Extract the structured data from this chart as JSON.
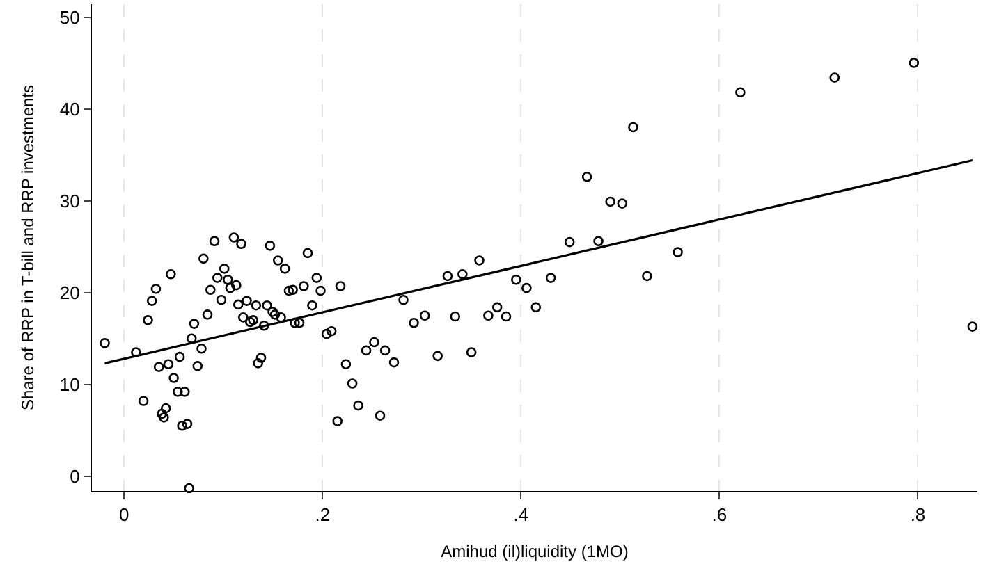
{
  "chart_data": {
    "type": "scatter",
    "xlabel": "Amihud (il)liquidity (1MO)",
    "ylabel": "Share of RRP in T-bill and RRP investments",
    "xlim": [
      -0.0325,
      0.86
    ],
    "ylim": [
      -1.6,
      51.4
    ],
    "xticks": [
      0,
      {
        "value": 0.2,
        "label": ".2"
      },
      {
        "value": 0.4,
        "label": ".4"
      },
      {
        "value": 0.6,
        "label": ".6"
      },
      {
        "value": 0.8,
        "label": ".8"
      }
    ],
    "yticks": [
      0,
      10,
      20,
      30,
      40,
      50
    ],
    "grid": "x",
    "legend": false,
    "series": [
      {
        "marker": "circle",
        "color": "#000000",
        "x": [
          -0.0195,
          0.012,
          0.0195,
          0.024,
          0.028,
          0.032,
          0.035,
          0.038,
          0.04,
          0.042,
          0.0446,
          0.047,
          0.05,
          0.054,
          0.056,
          0.0585,
          0.061,
          0.0636,
          0.0655,
          0.068,
          0.0706,
          0.074,
          0.078,
          0.08,
          0.084,
          0.087,
          0.091,
          0.094,
          0.098,
          0.101,
          0.1045,
          0.107,
          0.1106,
          0.113,
          0.115,
          0.118,
          0.12,
          0.1236,
          0.127,
          0.13,
          0.133,
          0.135,
          0.138,
          0.141,
          0.144,
          0.147,
          0.1496,
          0.152,
          0.155,
          0.158,
          0.162,
          0.166,
          0.17,
          0.172,
          0.1766,
          0.181,
          0.185,
          0.1895,
          0.194,
          0.198,
          0.204,
          0.209,
          0.215,
          0.218,
          0.2235,
          0.23,
          0.236,
          0.244,
          0.252,
          0.258,
          0.263,
          0.272,
          0.2815,
          0.292,
          0.303,
          0.316,
          0.326,
          0.3336,
          0.341,
          0.35,
          0.358,
          0.367,
          0.376,
          0.385,
          0.395,
          0.4056,
          0.415,
          0.43,
          0.449,
          0.4665,
          0.478,
          0.49,
          0.502,
          0.513,
          0.527,
          0.558,
          0.621,
          0.716,
          0.796,
          0.855
        ],
        "values": [
          14.5,
          13.5,
          8.2,
          17.0,
          19.1,
          20.4,
          11.9,
          6.8,
          6.4,
          7.4,
          12.2,
          22.0,
          10.7,
          9.2,
          13.0,
          5.5,
          9.2,
          5.7,
          -1.3,
          15.0,
          16.6,
          12.0,
          13.9,
          23.7,
          17.6,
          20.3,
          25.6,
          21.6,
          19.2,
          22.6,
          21.4,
          20.5,
          26.0,
          20.8,
          18.7,
          25.3,
          17.3,
          19.1,
          16.8,
          17.0,
          18.6,
          12.3,
          12.9,
          16.4,
          18.6,
          25.1,
          17.9,
          17.6,
          23.5,
          17.3,
          22.6,
          20.2,
          20.3,
          16.7,
          16.7,
          20.7,
          24.3,
          18.6,
          21.6,
          20.2,
          15.5,
          15.8,
          6.0,
          20.7,
          12.2,
          10.1,
          7.7,
          13.7,
          14.6,
          6.6,
          13.7,
          12.4,
          19.2,
          16.7,
          17.5,
          13.1,
          21.8,
          17.4,
          22.0,
          13.5,
          23.5,
          17.5,
          18.4,
          17.4,
          21.4,
          20.5,
          18.4,
          21.6,
          25.5,
          32.6,
          25.6,
          29.9,
          29.7,
          38.0,
          21.8,
          24.4,
          41.8,
          43.4,
          45.0,
          16.3
        ]
      },
      {
        "type": "line",
        "marker": "none",
        "color": "#000000",
        "x": [
          -0.0195,
          0.855
        ],
        "values": [
          12.3,
          34.4
        ]
      }
    ]
  }
}
